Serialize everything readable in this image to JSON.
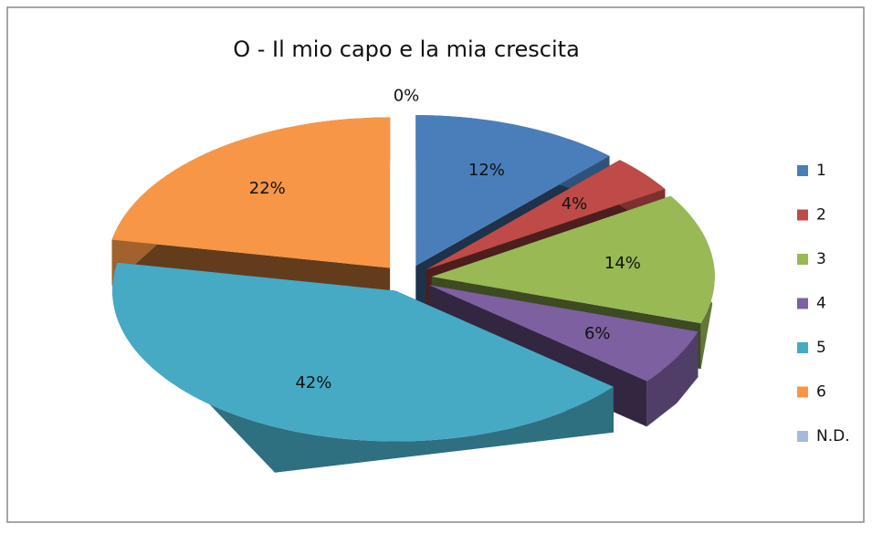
{
  "chart_data": {
    "type": "pie3d",
    "title": "O - Il mio capo e la mia crescita",
    "categories": [
      "1",
      "2",
      "3",
      "4",
      "5",
      "6",
      "N.D."
    ],
    "values": [
      12,
      4,
      14,
      6,
      42,
      22,
      0
    ],
    "value_labels": [
      "12%",
      "4%",
      "14%",
      "6%",
      "42%",
      "22%",
      "0%"
    ],
    "colors": [
      "#4a7ebb",
      "#be4b48",
      "#98b954",
      "#7d60a0",
      "#46aac5",
      "#f79646",
      "#a5b9dc"
    ],
    "legend": "right"
  }
}
